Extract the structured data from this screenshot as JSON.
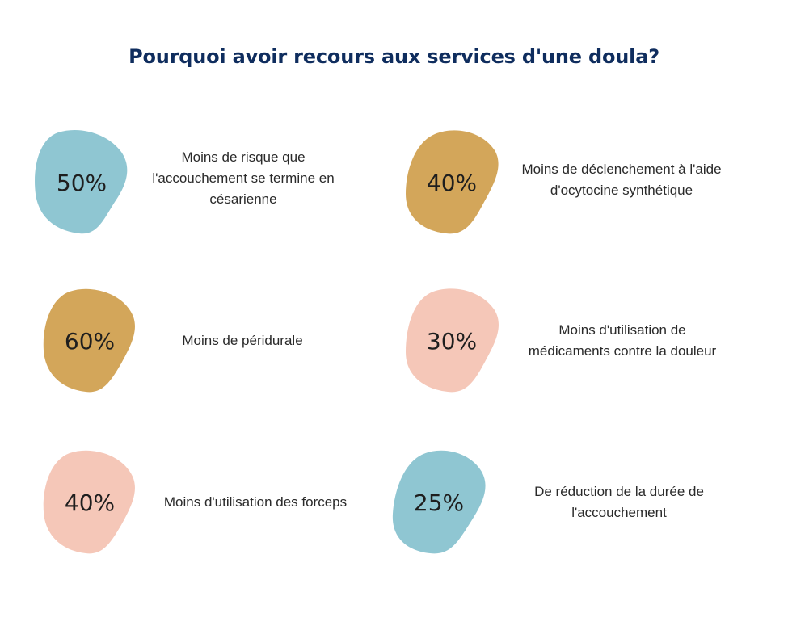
{
  "title": "Pourquoi avoir recours aux services d'une doula?",
  "colors": {
    "blue": "#8fc6d2",
    "gold": "#d3a65a",
    "pink": "#f5c7b8",
    "title": "#0f2d5e"
  },
  "items": [
    {
      "value": "50%",
      "lines": [
        "Moins de risque que",
        "l'accouchement se termine en",
        "césarienne"
      ],
      "color": "blue"
    },
    {
      "value": "40%",
      "lines": [
        "Moins de déclenchement à l'aide",
        "d'ocytocine synthétique"
      ],
      "color": "gold"
    },
    {
      "value": "60%",
      "lines": [
        "Moins de péridurale"
      ],
      "color": "gold"
    },
    {
      "value": "30%",
      "lines": [
        "Moins d'utilisation de",
        "médicaments contre la douleur"
      ],
      "color": "pink"
    },
    {
      "value": "40%",
      "lines": [
        "Moins d'utilisation des forceps"
      ],
      "color": "pink"
    },
    {
      "value": "25%",
      "lines": [
        "De réduction de la durée de",
        "l'accouchement"
      ],
      "color": "blue"
    }
  ]
}
